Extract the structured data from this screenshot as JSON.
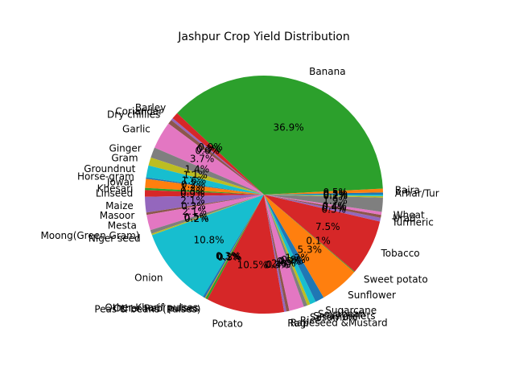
{
  "chart_data": {
    "type": "pie",
    "title": "Jashpur Crop Yield Distribution",
    "start_angle_deg": 0,
    "direction": "counterclockwise",
    "palette": [
      "#1f77b4",
      "#ff7f0e",
      "#2ca02c",
      "#d62728",
      "#9467bd",
      "#8c564b",
      "#e377c2",
      "#7f7f7f",
      "#bcbd22",
      "#17becf"
    ],
    "slices": [
      {
        "label": "Arhar/Tur",
        "value": 0.3,
        "pct_text": "0.3%"
      },
      {
        "label": "Bajra",
        "value": 0.5,
        "pct_text": "0.5%"
      },
      {
        "label": "Banana",
        "value": 36.9,
        "pct_text": "36.9%"
      },
      {
        "label": "Barley",
        "value": 0.9,
        "pct_text": "0.9%"
      },
      {
        "label": "Coriander",
        "value": 0.3,
        "pct_text": "0.3%"
      },
      {
        "label": "Dry chillies",
        "value": 0.6,
        "pct_text": "0.6%"
      },
      {
        "label": "Garlic",
        "value": 3.7,
        "pct_text": "3.7%"
      },
      {
        "label": "Ginger",
        "value": 1.4,
        "pct_text": "1.4%"
      },
      {
        "label": "Gram",
        "value": 1.1,
        "pct_text": "1.1%"
      },
      {
        "label": "Groundnut",
        "value": 1.6,
        "pct_text": "1.6%"
      },
      {
        "label": "Horse-gram",
        "value": 0.2,
        "pct_text": "0.2%"
      },
      {
        "label": "Jowar",
        "value": 1.2,
        "pct_text": "1.2%"
      },
      {
        "label": "Khesari",
        "value": 0.3,
        "pct_text": "0.3%"
      },
      {
        "label": "Linseed",
        "value": 0.9,
        "pct_text": "0.9%"
      },
      {
        "label": "Maize",
        "value": 2.1,
        "pct_text": "2.1%"
      },
      {
        "label": "Masoor",
        "value": 0.3,
        "pct_text": "0.3%"
      },
      {
        "label": "Mesta",
        "value": 2.1,
        "pct_text": "2.1%"
      },
      {
        "label": "Moong(Green Gram)",
        "value": 0.5,
        "pct_text": "0.5%"
      },
      {
        "label": "Niger seed",
        "value": 0.2,
        "pct_text": "0.2%"
      },
      {
        "label": "Onion",
        "value": 10.8,
        "pct_text": "10.8%"
      },
      {
        "label": "Other Kharif pulses",
        "value": 0.3,
        "pct_text": "0.3%"
      },
      {
        "label": "Other Rabi pulses",
        "value": 0.1,
        "pct_text": "0.1%"
      },
      {
        "label": "Peas & beans (Pulses)",
        "value": 0.3,
        "pct_text": "0.3%"
      },
      {
        "label": "Potato",
        "value": 10.5,
        "pct_text": "10.5%"
      },
      {
        "label": "Ragi",
        "value": 0.3,
        "pct_text": "0.3%"
      },
      {
        "label": "Rapeseed &Mustard",
        "value": 0.4,
        "pct_text": "0.4%"
      },
      {
        "label": "Rice",
        "value": 2.0,
        "pct_text": "2.0%"
      },
      {
        "label": "Sesamum",
        "value": 0.5,
        "pct_text": "0.5%"
      },
      {
        "label": "Small millets",
        "value": 0.4,
        "pct_text": "0.4%"
      },
      {
        "label": "Soyabean",
        "value": 0.8,
        "pct_text": "0.8%"
      },
      {
        "label": "Sugarcane",
        "value": 1.2,
        "pct_text": "1.2%"
      },
      {
        "label": "Sunflower",
        "value": 5.3,
        "pct_text": "5.3%"
      },
      {
        "label": "Sweet potato",
        "value": 0.1,
        "pct_text": "0.1%"
      },
      {
        "label": "Tobacco",
        "value": 7.5,
        "pct_text": "7.5%"
      },
      {
        "label": "Turmeric",
        "value": 0.5,
        "pct_text": "0.5%"
      },
      {
        "label": "Urad",
        "value": 0.4,
        "pct_text": "0.4%"
      },
      {
        "label": "Wheat",
        "value": 0.4,
        "pct_text": "0.4%"
      },
      {
        "label": "",
        "value": 1.9,
        "pct_text": "1.9%"
      },
      {
        "label": "",
        "value": 0.2,
        "pct_text": "0.2%"
      },
      {
        "label": "",
        "value": 0.2,
        "pct_text": "0.2%"
      }
    ]
  }
}
